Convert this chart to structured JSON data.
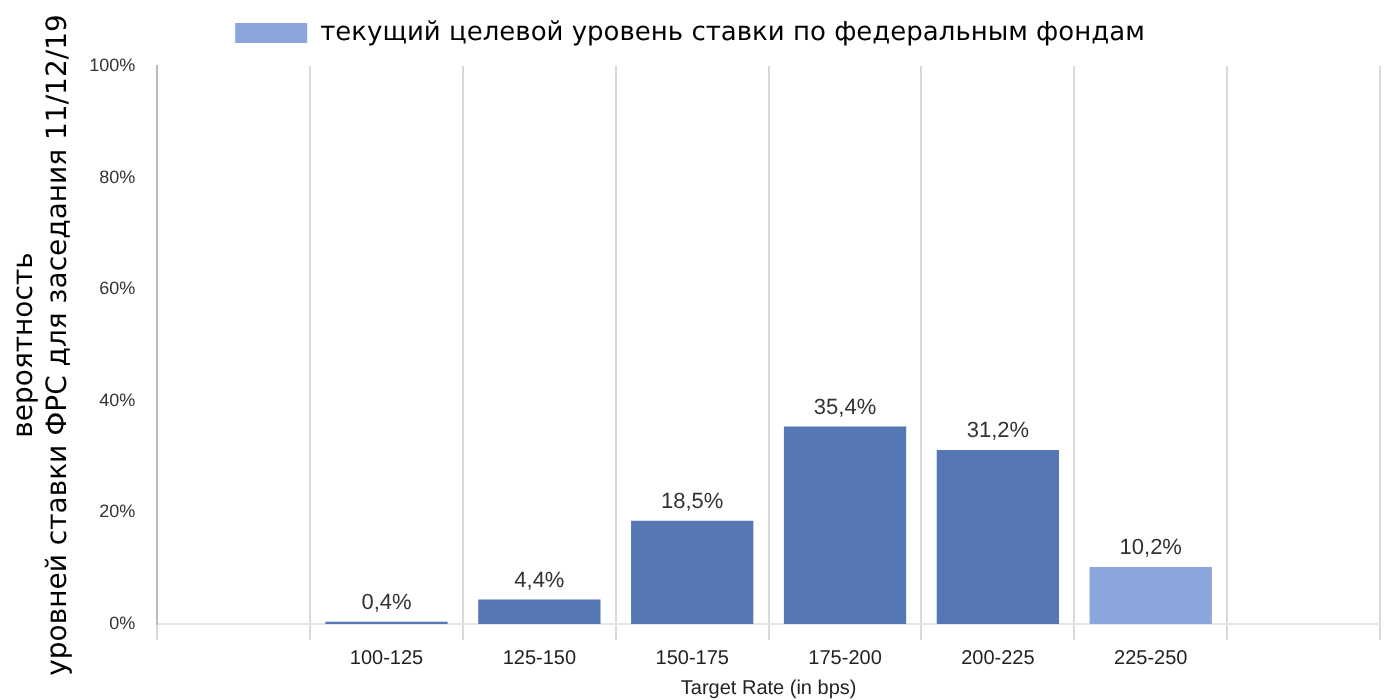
{
  "chart_data": {
    "type": "bar",
    "xlabel": "Target Rate (in bps)",
    "ylabel": "вероятность\nуровней ставки ФРС для заседания 11/12/19",
    "categories": [
      null,
      "100-125",
      "125-150",
      "150-175",
      "175-200",
      "200-225",
      "225-250",
      null
    ],
    "series": [
      {
        "color": "#5577b4",
        "values": [
          null,
          0.4,
          4.4,
          18.5,
          35.4,
          31.2,
          null,
          null
        ],
        "value_labels": [
          null,
          "0,4%",
          "4,4%",
          "18,5%",
          "35,4%",
          "31,2%",
          null,
          null
        ]
      },
      {
        "name": "текущий целевой уровень ставки по федеральным фондам",
        "color": "#8aa6dc",
        "values": [
          null,
          null,
          null,
          null,
          null,
          null,
          10.2,
          null
        ],
        "value_labels": [
          null,
          null,
          null,
          null,
          null,
          null,
          "10,2%",
          null
        ]
      }
    ],
    "ylim": [
      0,
      100
    ],
    "yticks": [
      {
        "value": 0,
        "label": "0%"
      },
      {
        "value": 20,
        "label": "20%"
      },
      {
        "value": 40,
        "label": "40%"
      },
      {
        "value": 60,
        "label": "60%"
      },
      {
        "value": 80,
        "label": "80%"
      },
      {
        "value": 100,
        "label": "100%"
      }
    ],
    "grid": "x",
    "legend": "top"
  }
}
